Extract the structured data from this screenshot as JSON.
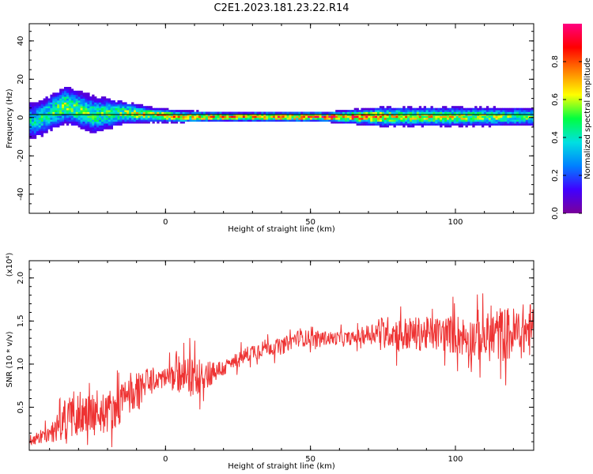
{
  "title": "C2E1.2023.181.23.22.R14",
  "chart_data": [
    {
      "type": "heatmap",
      "title": "C2E1.2023.181.23.22.R14",
      "xlabel": "Height of straight line (km)",
      "ylabel": "Frequency (Hz)",
      "xlim": [
        -47,
        127
      ],
      "ylim": [
        -50,
        49
      ],
      "xticks": [
        0,
        50,
        100
      ],
      "yticks": [
        -40,
        -20,
        0,
        20,
        40
      ],
      "x_tick_labels": [
        "0",
        "50",
        "100"
      ],
      "y_tick_labels": [
        "-40",
        "-20",
        "0",
        "20",
        "40"
      ],
      "colorbar": {
        "label": "Normalized spectral amplitude",
        "range": [
          0,
          1
        ],
        "ticks": [
          0.0,
          0.2,
          0.4,
          0.6,
          0.8
        ],
        "tick_labels": [
          "0.0",
          "0.2",
          "0.4",
          "0.6",
          "0.8"
        ],
        "colormap": [
          "#7a0099",
          "#4000ff",
          "#0080ff",
          "#00e0e0",
          "#00ff40",
          "#ffff00",
          "#ff8000",
          "#ff0000",
          "#ff0080"
        ]
      },
      "profile": {
        "description_x": [
          -45,
          -35,
          -25,
          -15,
          -5,
          5,
          15,
          25,
          35,
          45,
          55,
          65,
          75,
          85,
          95,
          105,
          115,
          125
        ],
        "center_freq": [
          -2,
          6,
          1,
          2,
          1,
          0,
          0,
          0,
          0,
          0,
          0,
          0,
          0,
          0,
          0,
          0,
          0,
          0
        ],
        "halfwidth": [
          8,
          8,
          8,
          5,
          3,
          2.5,
          2,
          2,
          2,
          2,
          2,
          3,
          4,
          4,
          4,
          4,
          4,
          4
        ],
        "peak_amplitude": [
          0.45,
          0.6,
          0.55,
          0.6,
          0.75,
          0.8,
          0.85,
          0.85,
          0.9,
          0.95,
          0.95,
          0.9,
          0.8,
          0.75,
          0.7,
          0.65,
          0.6,
          0.55
        ]
      }
    },
    {
      "type": "line",
      "title": "",
      "xlabel": "Height of straight line (km)",
      "ylabel": "SNR (10 * v/v)",
      "y_multiplier": "(x10⁴)",
      "xlim": [
        -47,
        127
      ],
      "ylim": [
        0,
        2.2
      ],
      "xticks": [
        0,
        50,
        100
      ],
      "yticks": [
        0.5,
        1.0,
        1.5,
        2.0
      ],
      "x_tick_labels": [
        "0",
        "50",
        "100"
      ],
      "y_tick_labels": [
        "0.5",
        "1.0",
        "1.5",
        "2.0"
      ],
      "series": [
        {
          "color": "#ee3333",
          "trend_x": [
            -47,
            -40,
            -35,
            -30,
            -25,
            -20,
            -15,
            -10,
            -5,
            0,
            5,
            10,
            15,
            20,
            25,
            30,
            35,
            40,
            45,
            50,
            55,
            60,
            65,
            70,
            75,
            80,
            85,
            90,
            95,
            100,
            105,
            110,
            115,
            120,
            125
          ],
          "trend_y": [
            0.12,
            0.18,
            0.35,
            0.45,
            0.4,
            0.45,
            0.55,
            0.7,
            0.8,
            0.85,
            0.85,
            0.85,
            0.9,
            0.95,
            1.05,
            1.15,
            1.2,
            1.2,
            1.3,
            1.3,
            1.3,
            1.3,
            1.3,
            1.35,
            1.4,
            1.35,
            1.35,
            1.35,
            1.35,
            1.35,
            1.3,
            1.3,
            1.35,
            1.35,
            1.4
          ],
          "noise_amplitude": [
            0.08,
            0.12,
            0.3,
            0.35,
            0.3,
            0.3,
            0.3,
            0.25,
            0.2,
            0.15,
            0.25,
            0.3,
            0.2,
            0.12,
            0.12,
            0.12,
            0.12,
            0.12,
            0.12,
            0.12,
            0.1,
            0.1,
            0.1,
            0.15,
            0.2,
            0.25,
            0.25,
            0.25,
            0.25,
            0.3,
            0.3,
            0.35,
            0.4,
            0.4,
            0.4
          ]
        }
      ]
    }
  ]
}
